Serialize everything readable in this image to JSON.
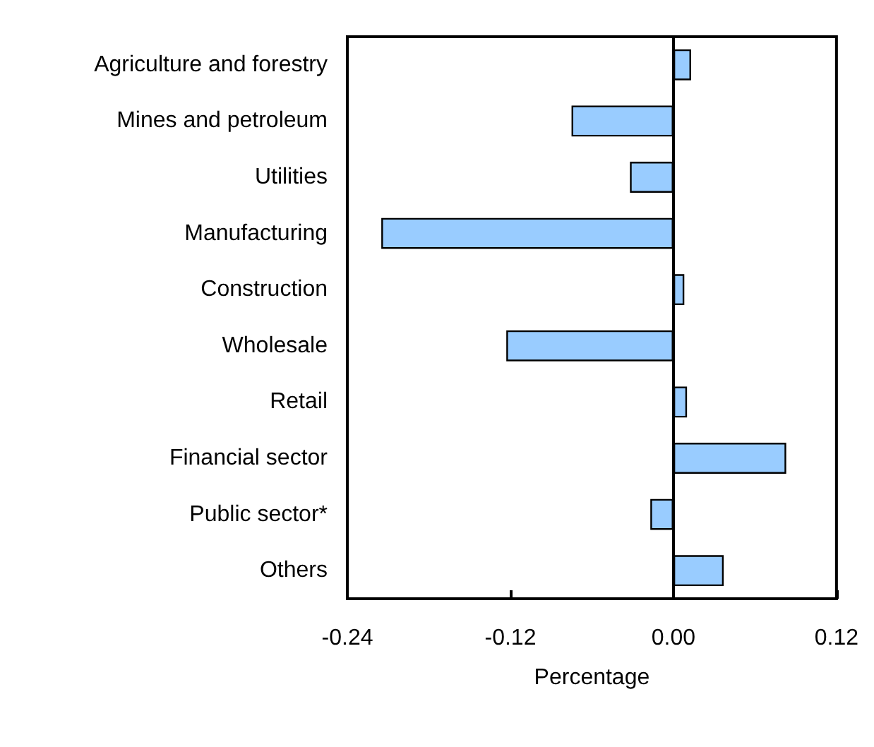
{
  "chart_data": {
    "type": "bar",
    "orientation": "horizontal",
    "xlabel": "Percentage",
    "categories": [
      "Agriculture and forestry",
      "Mines and petroleum",
      "Utilities",
      "Manufacturing",
      "Construction",
      "Wholesale",
      "Retail",
      "Financial sector",
      "Public sector*",
      "Others"
    ],
    "values": [
      0.013,
      -0.075,
      -0.032,
      -0.215,
      0.008,
      -0.123,
      0.01,
      0.083,
      -0.017,
      0.037
    ],
    "color": "#99ccff",
    "xlim": [
      -0.24,
      0.12
    ],
    "xticks": [
      -0.24,
      -0.12,
      {
        "value": 0,
        "label": "0.00"
      },
      0.12
    ]
  }
}
